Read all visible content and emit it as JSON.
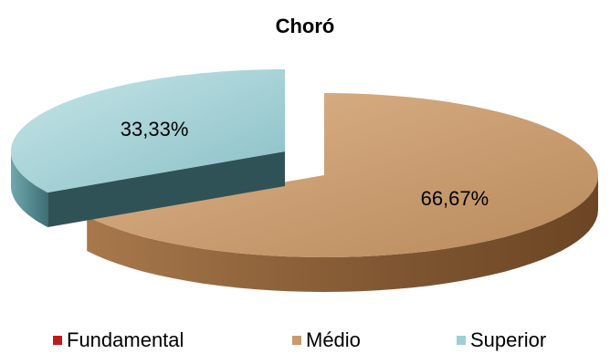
{
  "chart_data": {
    "type": "pie",
    "title": "Choró",
    "categories": [
      "Fundamental",
      "Médio",
      "Superior"
    ],
    "values": [
      0,
      66.67,
      33.33
    ],
    "data_labels": [
      "",
      "66,67%",
      "33,33%"
    ],
    "colors": [
      "#c0191c",
      "#c99a6d",
      "#9ecfd4"
    ],
    "legend_position": "bottom"
  }
}
